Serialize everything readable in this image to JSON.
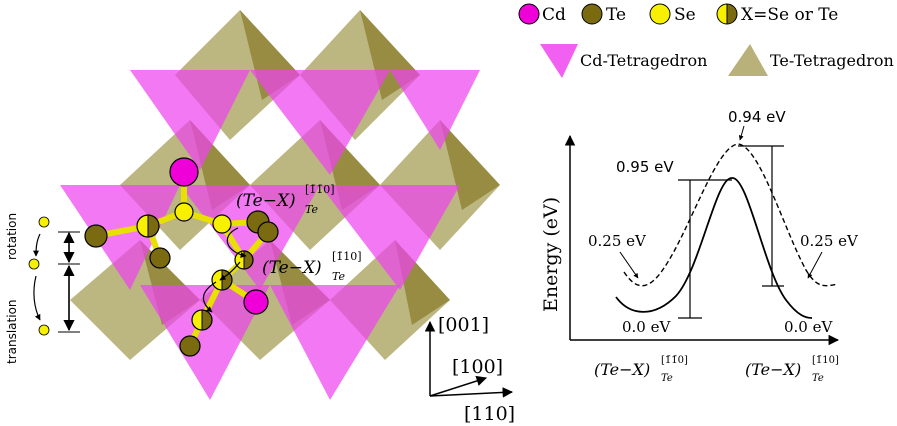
{
  "colors": {
    "cd": "#f000d8",
    "te": "#7a6a10",
    "se": "#f7f000",
    "cd_tetra": "#ee44ee",
    "te_tetra": "#b8b27a",
    "bond": "#e8e000"
  },
  "legend": {
    "cd": "Cd",
    "te": "Te",
    "se": "Se",
    "x": "X=Se or Te",
    "cd_tetra": "Cd-Tetragedron",
    "te_tetra": "Te-Tetragedron"
  },
  "structure": {
    "label_upper_base": "(Te−X)",
    "label_upper_sub": "Te",
    "label_upper_sup": "[1̄1̄0]",
    "label_lower_base": "(Te−X)",
    "label_lower_sub": "Te",
    "label_lower_sup": "[1̄10]",
    "translation": "translation",
    "rotation": "rotation"
  },
  "axes": {
    "a001": "[001]",
    "a100": "[100]",
    "a110": "[110]"
  },
  "energy": {
    "ylabel": "Energy (eV)",
    "barrier_dashed": "0.94 eV",
    "barrier_solid": "0.95 eV",
    "left_dashed_min": "0.25 eV",
    "right_dashed_min": "0.25 eV",
    "left_solid_min": "0.0 eV",
    "right_solid_min": "0.0 eV",
    "x_left_base": "(Te−X)",
    "x_left_sub": "Te",
    "x_left_sup": "[1̄1̄0]",
    "x_right_base": "(Te−X)",
    "x_right_sub": "Te",
    "x_right_sup": "[1̄10]"
  }
}
